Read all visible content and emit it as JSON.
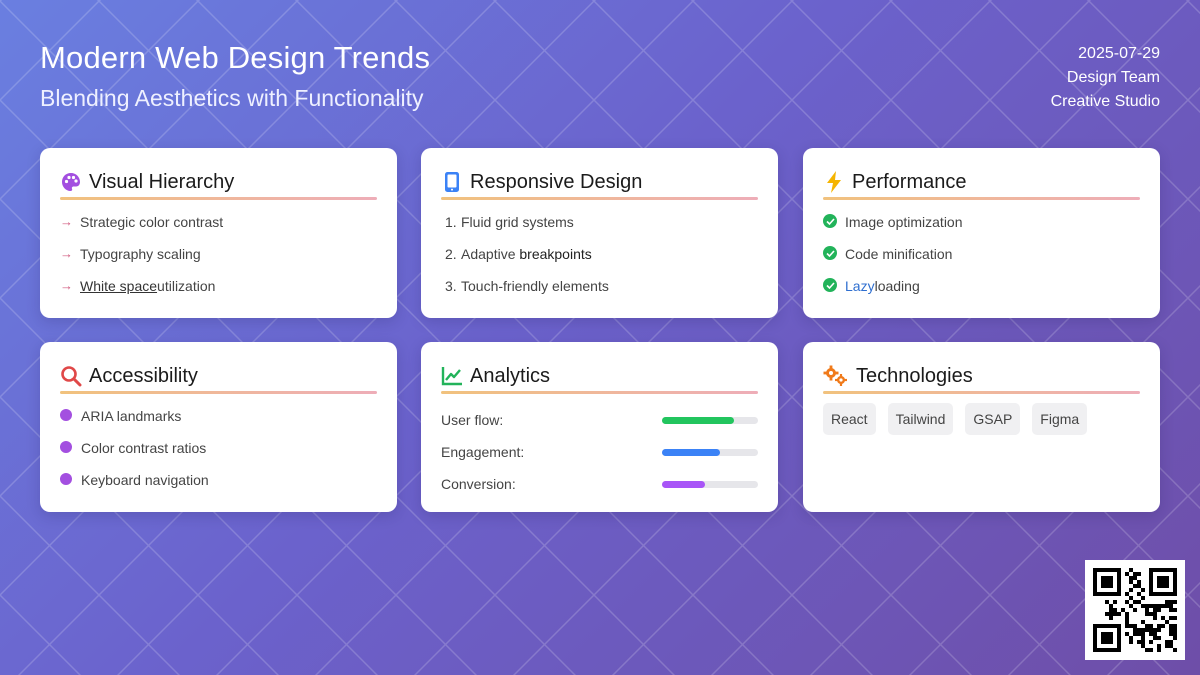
{
  "header": {
    "title": "Modern Web Design Trends",
    "subtitle": "Blending Aesthetics with Functionality"
  },
  "meta": {
    "date": "2025-07-29",
    "team": "Design Team",
    "studio": "Creative Studio"
  },
  "cards": {
    "visual": {
      "title": "Visual Hierarchy",
      "icon": "palette-icon",
      "items": [
        "Strategic color contrast",
        "Typography scaling"
      ],
      "item3_underlined": "White space",
      "item3_rest": "utilization"
    },
    "responsive": {
      "title": "Responsive Design",
      "icon": "mobile-icon",
      "items": [
        {
          "num": "1.",
          "text": "Fluid grid systems"
        },
        {
          "num": "2.",
          "text": "Adaptive ",
          "strong": "breakpoints"
        },
        {
          "num": "3.",
          "text": "Touch-friendly elements"
        }
      ]
    },
    "performance": {
      "title": "Performance",
      "icon": "lightning-icon",
      "items": [
        "Image optimization",
        "Code minification"
      ],
      "item3_link": "Lazy",
      "item3_rest": "loading"
    },
    "accessibility": {
      "title": "Accessibility",
      "icon": "search-icon",
      "items": [
        "ARIA landmarks",
        "Color contrast ratios",
        "Keyboard navigation"
      ]
    },
    "analytics": {
      "title": "Analytics",
      "icon": "chart-line-icon",
      "metrics": [
        {
          "label": "User flow:",
          "value": 0.75,
          "color": "#22c55e"
        },
        {
          "label": "Engagement:",
          "value": 0.6,
          "color": "#3b82f6"
        },
        {
          "label": "Conversion:",
          "value": 0.45,
          "color": "#a855f7"
        }
      ]
    },
    "technologies": {
      "title": "Technologies",
      "icon": "gears-icon",
      "tags": [
        "React",
        "Tailwind",
        "GSAP",
        "Figma"
      ]
    }
  },
  "colors": {
    "accent_pink": "#d0587e",
    "check_green": "#22b35a",
    "dot_purple": "#a34fe0",
    "link_blue": "#2f6fd0"
  }
}
